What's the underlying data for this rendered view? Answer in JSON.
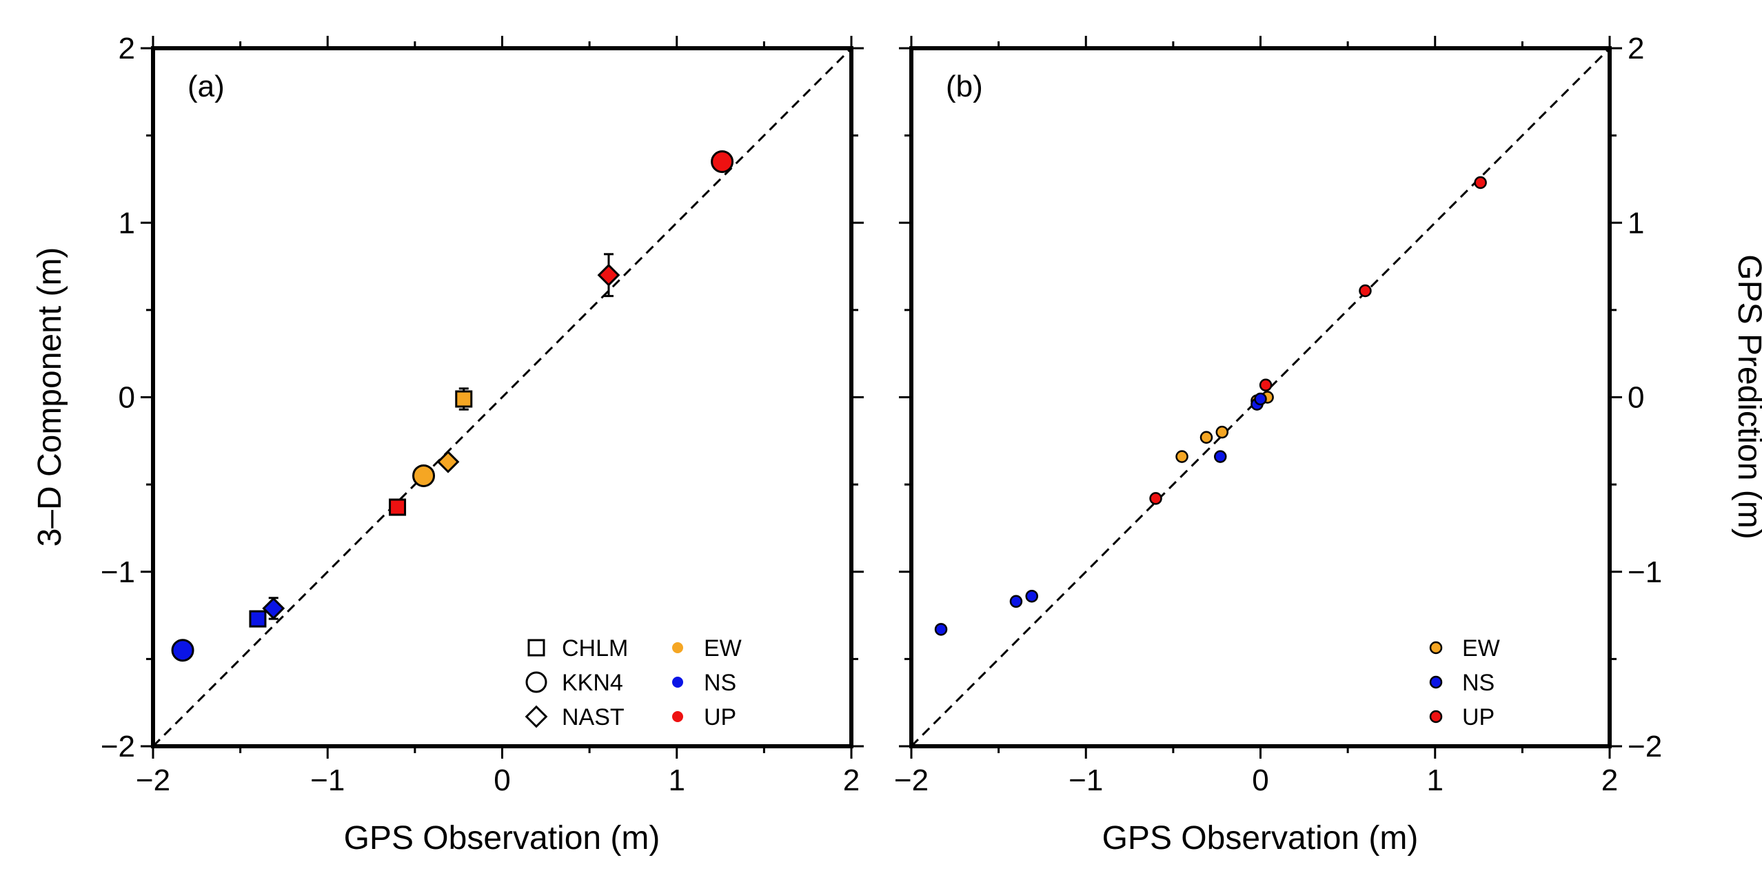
{
  "colors": {
    "EW": "#f5a623",
    "NS": "#0a14e6",
    "UP": "#ee1111"
  },
  "chart_data": [
    {
      "type": "scatter",
      "panel_label": "(a)",
      "xlabel": "GPS Observation (m)",
      "ylabel": "3–D Component (m)",
      "xlim": [
        -2,
        2
      ],
      "ylim": [
        -2,
        2
      ],
      "x_ticks": [
        "−2",
        "−1",
        "0",
        "1",
        "2"
      ],
      "y_ticks": [
        "−2",
        "−1",
        "0",
        "1",
        "2"
      ],
      "reference_line": "y = x (dashed)",
      "points": [
        {
          "station": "CHLM",
          "component": "EW",
          "x": -0.22,
          "y": -0.01,
          "err": 0.06
        },
        {
          "station": "CHLM",
          "component": "NS",
          "x": -1.4,
          "y": -1.27,
          "err": 0.02
        },
        {
          "station": "CHLM",
          "component": "UP",
          "x": -0.6,
          "y": -0.63,
          "err": 0.02
        },
        {
          "station": "KKN4",
          "component": "EW",
          "x": -0.45,
          "y": -0.45,
          "err": 0
        },
        {
          "station": "KKN4",
          "component": "NS",
          "x": -1.83,
          "y": -1.45,
          "err": 0
        },
        {
          "station": "KKN4",
          "component": "UP",
          "x": 1.26,
          "y": 1.35,
          "err": 0
        },
        {
          "station": "NAST",
          "component": "EW",
          "x": -0.31,
          "y": -0.37,
          "err": 0
        },
        {
          "station": "NAST",
          "component": "NS",
          "x": -1.31,
          "y": -1.21,
          "err": 0.06
        },
        {
          "station": "NAST",
          "component": "UP",
          "x": 0.61,
          "y": 0.7,
          "err": 0.12
        }
      ],
      "legend": {
        "placement": "bottom-right",
        "stations": [
          {
            "label": "CHLM",
            "marker": "square"
          },
          {
            "label": "KKN4",
            "marker": "circle"
          },
          {
            "label": "NAST",
            "marker": "diamond"
          }
        ],
        "components": [
          "EW",
          "NS",
          "UP"
        ]
      }
    },
    {
      "type": "scatter",
      "panel_label": "(b)",
      "xlabel": "GPS Observation (m)",
      "ylabel": "GPS Prediction (m)",
      "xlim": [
        -2,
        2
      ],
      "ylim": [
        -2,
        2
      ],
      "x_ticks": [
        "−2",
        "−1",
        "0",
        "1",
        "2"
      ],
      "y_ticks": [
        "−2",
        "−1",
        "0",
        "1",
        "2"
      ],
      "reference_line": "y = x (dashed)",
      "points": [
        {
          "component": "EW",
          "x": -0.45,
          "y": -0.34
        },
        {
          "component": "EW",
          "x": -0.31,
          "y": -0.23
        },
        {
          "component": "EW",
          "x": -0.22,
          "y": -0.2
        },
        {
          "component": "EW",
          "x": 0.04,
          "y": 0.0
        },
        {
          "component": "EW",
          "x": -0.02,
          "y": -0.02
        },
        {
          "component": "NS",
          "x": -1.83,
          "y": -1.33
        },
        {
          "component": "NS",
          "x": -1.4,
          "y": -1.17
        },
        {
          "component": "NS",
          "x": -1.31,
          "y": -1.14
        },
        {
          "component": "NS",
          "x": -0.23,
          "y": -0.34
        },
        {
          "component": "NS",
          "x": -0.02,
          "y": -0.04
        },
        {
          "component": "NS",
          "x": 0.0,
          "y": -0.01
        },
        {
          "component": "UP",
          "x": 1.26,
          "y": 1.23
        },
        {
          "component": "UP",
          "x": 0.6,
          "y": 0.61
        },
        {
          "component": "UP",
          "x": -0.6,
          "y": -0.58
        },
        {
          "component": "UP",
          "x": 0.03,
          "y": 0.07
        }
      ],
      "legend": {
        "placement": "bottom-right",
        "components": [
          "EW",
          "NS",
          "UP"
        ]
      }
    }
  ]
}
